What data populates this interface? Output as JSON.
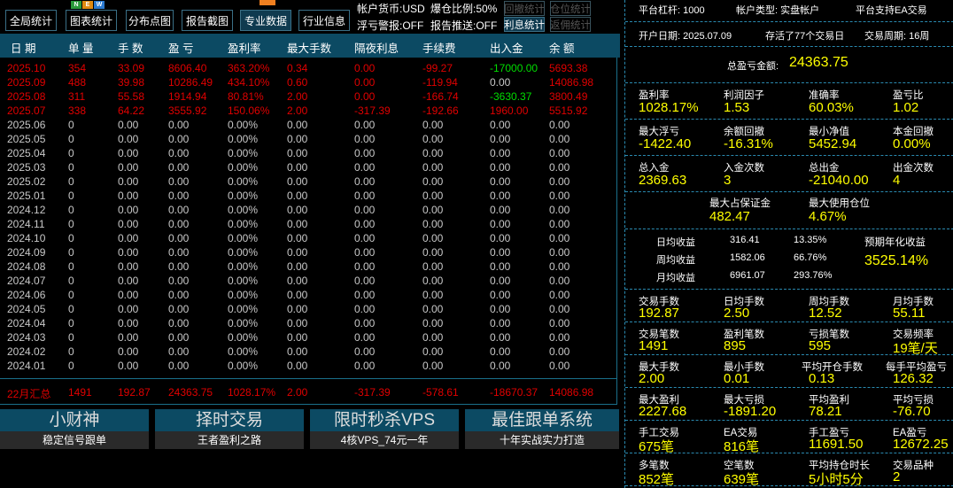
{
  "toolbar": {
    "buttons": [
      "全局统计",
      "图表统计",
      "分布点图",
      "报告截图",
      "专业数据",
      "行业信息"
    ],
    "active": 4,
    "new_badge": [
      "N",
      "E",
      "W"
    ],
    "currency": "帐户货币:USD",
    "margin_ratio": "爆仓比例:50%",
    "float_alarm": "浮亏警报:OFF",
    "report_push": "报告推送:OFF",
    "small_buttons": [
      {
        "label": "回撤统计",
        "on": false
      },
      {
        "label": "仓位统计",
        "on": false
      },
      {
        "label": "利息统计",
        "on": true
      },
      {
        "label": "返佣统计",
        "on": false
      }
    ]
  },
  "table": {
    "headers": [
      "日 期",
      "单 量",
      "手 数",
      "盈 亏",
      "盈利率",
      "最大手数",
      "隔夜利息",
      "手续费",
      "出入金",
      "余 额"
    ],
    "rows": [
      [
        "2025.10",
        "354",
        "33.09",
        "8606.40",
        "363.20%",
        "0.34",
        "0.00",
        "-99.27",
        "-17000.00",
        "5693.38"
      ],
      [
        "2025.09",
        "488",
        "39.98",
        "10286.49",
        "434.10%",
        "0.60",
        "0.00",
        "-119.94",
        "0.00",
        "14086.98"
      ],
      [
        "2025.08",
        "311",
        "55.58",
        "1914.94",
        "80.81%",
        "2.00",
        "0.00",
        "-166.74",
        "-3630.37",
        "3800.49"
      ],
      [
        "2025.07",
        "338",
        "64.22",
        "3555.92",
        "150.06%",
        "2.00",
        "-317.39",
        "-192.66",
        "1960.00",
        "5515.92"
      ],
      [
        "2025.06",
        "0",
        "0.00",
        "0.00",
        "0.00%",
        "0.00",
        "0.00",
        "0.00",
        "0.00",
        "0.00"
      ],
      [
        "2025.05",
        "0",
        "0.00",
        "0.00",
        "0.00%",
        "0.00",
        "0.00",
        "0.00",
        "0.00",
        "0.00"
      ],
      [
        "2025.04",
        "0",
        "0.00",
        "0.00",
        "0.00%",
        "0.00",
        "0.00",
        "0.00",
        "0.00",
        "0.00"
      ],
      [
        "2025.03",
        "0",
        "0.00",
        "0.00",
        "0.00%",
        "0.00",
        "0.00",
        "0.00",
        "0.00",
        "0.00"
      ],
      [
        "2025.02",
        "0",
        "0.00",
        "0.00",
        "0.00%",
        "0.00",
        "0.00",
        "0.00",
        "0.00",
        "0.00"
      ],
      [
        "2025.01",
        "0",
        "0.00",
        "0.00",
        "0.00%",
        "0.00",
        "0.00",
        "0.00",
        "0.00",
        "0.00"
      ],
      [
        "2024.12",
        "0",
        "0.00",
        "0.00",
        "0.00%",
        "0.00",
        "0.00",
        "0.00",
        "0.00",
        "0.00"
      ],
      [
        "2024.11",
        "0",
        "0.00",
        "0.00",
        "0.00%",
        "0.00",
        "0.00",
        "0.00",
        "0.00",
        "0.00"
      ],
      [
        "2024.10",
        "0",
        "0.00",
        "0.00",
        "0.00%",
        "0.00",
        "0.00",
        "0.00",
        "0.00",
        "0.00"
      ],
      [
        "2024.09",
        "0",
        "0.00",
        "0.00",
        "0.00%",
        "0.00",
        "0.00",
        "0.00",
        "0.00",
        "0.00"
      ],
      [
        "2024.08",
        "0",
        "0.00",
        "0.00",
        "0.00%",
        "0.00",
        "0.00",
        "0.00",
        "0.00",
        "0.00"
      ],
      [
        "2024.07",
        "0",
        "0.00",
        "0.00",
        "0.00%",
        "0.00",
        "0.00",
        "0.00",
        "0.00",
        "0.00"
      ],
      [
        "2024.06",
        "0",
        "0.00",
        "0.00",
        "0.00%",
        "0.00",
        "0.00",
        "0.00",
        "0.00",
        "0.00"
      ],
      [
        "2024.05",
        "0",
        "0.00",
        "0.00",
        "0.00%",
        "0.00",
        "0.00",
        "0.00",
        "0.00",
        "0.00"
      ],
      [
        "2024.04",
        "0",
        "0.00",
        "0.00",
        "0.00%",
        "0.00",
        "0.00",
        "0.00",
        "0.00",
        "0.00"
      ],
      [
        "2024.03",
        "0",
        "0.00",
        "0.00",
        "0.00%",
        "0.00",
        "0.00",
        "0.00",
        "0.00",
        "0.00"
      ],
      [
        "2024.02",
        "0",
        "0.00",
        "0.00",
        "0.00%",
        "0.00",
        "0.00",
        "0.00",
        "0.00",
        "0.00"
      ],
      [
        "2024.01",
        "0",
        "0.00",
        "0.00",
        "0.00%",
        "0.00",
        "0.00",
        "0.00",
        "0.00",
        "0.00"
      ]
    ],
    "summary": [
      "22月汇总",
      "1491",
      "192.87",
      "24363.75",
      "1028.17%",
      "2.00",
      "-317.39",
      "-578.61",
      "-18670.37",
      "14086.98"
    ]
  },
  "colors": {
    "loss_profit_red": "#e00000",
    "deposit_green": "#00dd00",
    "zero_gray": "#c8c8c8",
    "value_yellow": "#ffff00",
    "header_blue": "#0c4a63"
  },
  "banners": [
    {
      "title": "小财神",
      "sub": "稳定信号跟单"
    },
    {
      "title": "择时交易",
      "sub": "王者盈利之路"
    },
    {
      "title": "限时秒杀VPS",
      "sub": "4核VPS_74元一年"
    },
    {
      "title": "最佳跟单系统",
      "sub": "十年实战实力打造"
    }
  ],
  "account": {
    "leverage": "平台杠杆:  1000",
    "type": "帐户类型:  实盘帐户",
    "ea": "平台支持EA交易",
    "open_date": "开户日期:  2025.07.09",
    "alive": "存活了77个交易日",
    "period": "交易周期:  16周",
    "total_label": "总盈亏金额:",
    "total_value": "24363.75"
  },
  "stats": [
    [
      {
        "l": "盈利率",
        "v": "1028.17%"
      },
      {
        "l": "利润因子",
        "v": "1.53"
      },
      {
        "l": "准确率",
        "v": "60.03%"
      },
      {
        "l": "盈亏比",
        "v": "1.02"
      }
    ],
    [
      {
        "l": "最大浮亏",
        "v": "-1422.40"
      },
      {
        "l": "余额回撤",
        "v": "-16.31%"
      },
      {
        "l": "最小净值",
        "v": "5452.94"
      },
      {
        "l": "本金回撤",
        "v": "0.00%"
      }
    ],
    [
      {
        "l": "总入金",
        "v": "2369.63"
      },
      {
        "l": "入金次数",
        "v": "3"
      },
      {
        "l": "总出金",
        "v": "-21040.00"
      },
      {
        "l": "出金次数",
        "v": "4"
      }
    ]
  ],
  "margin": [
    {
      "l": "最大占保证金",
      "v": "482.47"
    },
    {
      "l": "最大使用仓位",
      "v": "4.67%"
    }
  ],
  "returns": {
    "rows": [
      [
        "日均收益",
        "316.41",
        "13.35%"
      ],
      [
        "周均收益",
        "1582.06",
        "66.76%"
      ],
      [
        "月均收益",
        "6961.07",
        "293.76%"
      ]
    ],
    "annual_label": "预期年化收益",
    "annual_value": "3525.14%"
  },
  "stats2": [
    [
      {
        "l": "交易手数",
        "v": "192.87"
      },
      {
        "l": "日均手数",
        "v": "2.50"
      },
      {
        "l": "周均手数",
        "v": "12.52"
      },
      {
        "l": "月均手数",
        "v": "55.11"
      }
    ],
    [
      {
        "l": "交易笔数",
        "v": "1491"
      },
      {
        "l": "盈利笔数",
        "v": "895"
      },
      {
        "l": "亏损笔数",
        "v": "595"
      },
      {
        "l": "交易频率",
        "v": "19笔/天"
      }
    ],
    [
      {
        "l": "最大手数",
        "v": "2.00"
      },
      {
        "l": "最小手数",
        "v": "0.01"
      },
      {
        "l": "平均开仓手数",
        "v": "0.13"
      },
      {
        "l": "每手平均盈亏",
        "v": "126.32"
      }
    ],
    [
      {
        "l": "最大盈利",
        "v": "2227.68"
      },
      {
        "l": "最大亏损",
        "v": "-1891.20"
      },
      {
        "l": "平均盈利",
        "v": "78.21"
      },
      {
        "l": "平均亏损",
        "v": "-76.70"
      }
    ],
    [
      {
        "l": "手工交易",
        "v": "675笔"
      },
      {
        "l": "EA交易",
        "v": "816笔"
      },
      {
        "l": "手工盈亏",
        "v": "11691.50"
      },
      {
        "l": "EA盈亏",
        "v": "12672.25"
      }
    ],
    [
      {
        "l": "多笔数",
        "v": "852笔"
      },
      {
        "l": "空笔数",
        "v": "639笔"
      },
      {
        "l": "平均持仓时长",
        "v": "5小时5分"
      },
      {
        "l": "交易品种",
        "v": "2"
      }
    ]
  ]
}
